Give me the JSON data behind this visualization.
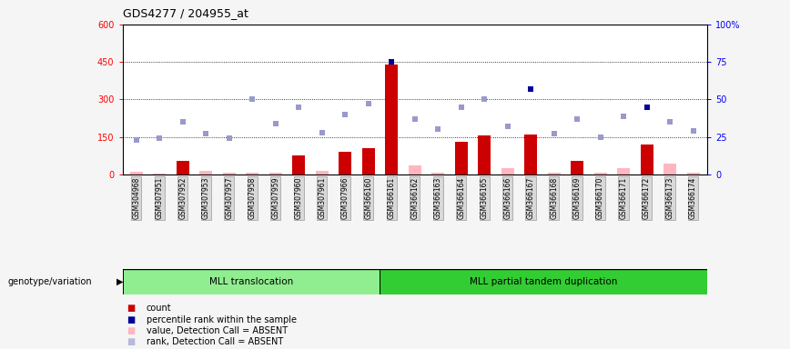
{
  "title": "GDS4277 / 204955_at",
  "samples": [
    "GSM304968",
    "GSM307951",
    "GSM307952",
    "GSM307953",
    "GSM307957",
    "GSM307958",
    "GSM307959",
    "GSM307960",
    "GSM307961",
    "GSM307966",
    "GSM366160",
    "GSM366161",
    "GSM366162",
    "GSM366163",
    "GSM366164",
    "GSM366165",
    "GSM366166",
    "GSM366167",
    "GSM366168",
    "GSM366169",
    "GSM366170",
    "GSM366171",
    "GSM366172",
    "GSM366173",
    "GSM366174"
  ],
  "count_values": [
    10,
    5,
    55,
    15,
    8,
    8,
    8,
    75,
    15,
    90,
    105,
    440,
    35,
    8,
    130,
    155,
    25,
    160,
    8,
    55,
    8,
    25,
    120,
    45,
    8
  ],
  "count_absent": [
    true,
    true,
    false,
    true,
    true,
    true,
    true,
    false,
    true,
    false,
    false,
    false,
    true,
    true,
    false,
    false,
    true,
    false,
    true,
    false,
    true,
    true,
    false,
    true,
    true
  ],
  "rank_values": [
    23,
    24,
    35,
    27,
    24,
    50,
    34,
    45,
    28,
    40,
    47,
    75,
    37,
    30,
    45,
    50,
    32,
    57,
    27,
    37,
    25,
    39,
    45,
    35,
    29
  ],
  "rank_is_dark": [
    false,
    false,
    false,
    false,
    false,
    false,
    false,
    false,
    false,
    false,
    false,
    true,
    false,
    false,
    false,
    false,
    false,
    true,
    false,
    false,
    false,
    false,
    true,
    false,
    false
  ],
  "groups": [
    {
      "label": "MLL translocation",
      "start": 0,
      "end": 11,
      "color": "#90ee90"
    },
    {
      "label": "MLL partial tandem duplication",
      "start": 11,
      "end": 25,
      "color": "#32cd32"
    }
  ],
  "ylim_left": [
    0,
    600
  ],
  "ylim_right": [
    0,
    100
  ],
  "yticks_left": [
    0,
    150,
    300,
    450,
    600
  ],
  "yticks_right": [
    0,
    25,
    50,
    75,
    100
  ],
  "ytick_labels_right": [
    "0",
    "25",
    "50",
    "75",
    "100%"
  ],
  "hlines": [
    150,
    300,
    450
  ],
  "background_color": "#f5f5f5",
  "plot_bg": "#ffffff",
  "legend_items": [
    {
      "color": "#cc0000",
      "label": "count"
    },
    {
      "color": "#000099",
      "label": "percentile rank within the sample"
    },
    {
      "color": "#ffb6c1",
      "label": "value, Detection Call = ABSENT"
    },
    {
      "color": "#b8b8d8",
      "label": "rank, Detection Call = ABSENT"
    }
  ]
}
